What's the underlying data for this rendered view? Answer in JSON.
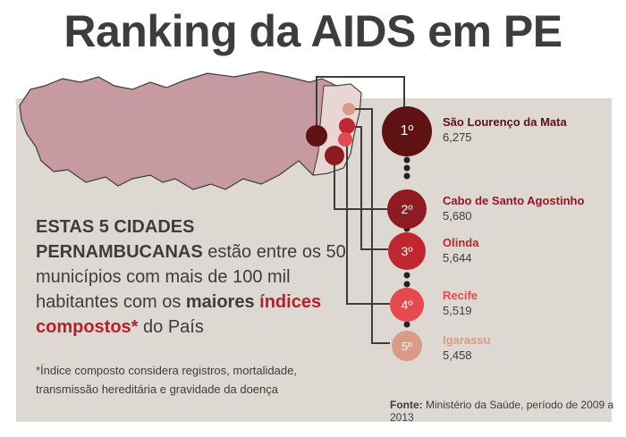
{
  "title": "Ranking da AIDS em PE",
  "lead": {
    "part1": "ESTAS 5 CIDADES PERNAMBUCANAS",
    "part2": " estão entre os 50 municípios com mais de 100 mil habitantes com os ",
    "part3": "maiores",
    "part4": "índices compostos*",
    "part5": " do País"
  },
  "footnote": "*Índice composto considera registros, mortalidade, transmissão hereditária e gravidade da doença",
  "source": {
    "label": "Fonte:",
    "text": " Ministério da Saúde, período de 2009 a 2013"
  },
  "ranking": [
    {
      "rank": "1º",
      "city": "São Lourenço da Mata",
      "value": "6,275",
      "color": "#5e1214"
    },
    {
      "rank": "2º",
      "city": "Cabo de Santo Agostinho",
      "value": "5,680",
      "color": "#8e1a22"
    },
    {
      "rank": "3º",
      "city": "Olinda",
      "value": "5,644",
      "color": "#c0262f"
    },
    {
      "rank": "4º",
      "city": "Recife",
      "value": "5,519",
      "color": "#e4494f"
    },
    {
      "rank": "5º",
      "city": "Igarassu",
      "value": "5,458",
      "color": "#d99a88"
    }
  ],
  "colors": {
    "title": "#3d3d3d",
    "panel": "#ddd8d2",
    "map_fill": "#c69aa0",
    "accent": "#b5202c"
  }
}
